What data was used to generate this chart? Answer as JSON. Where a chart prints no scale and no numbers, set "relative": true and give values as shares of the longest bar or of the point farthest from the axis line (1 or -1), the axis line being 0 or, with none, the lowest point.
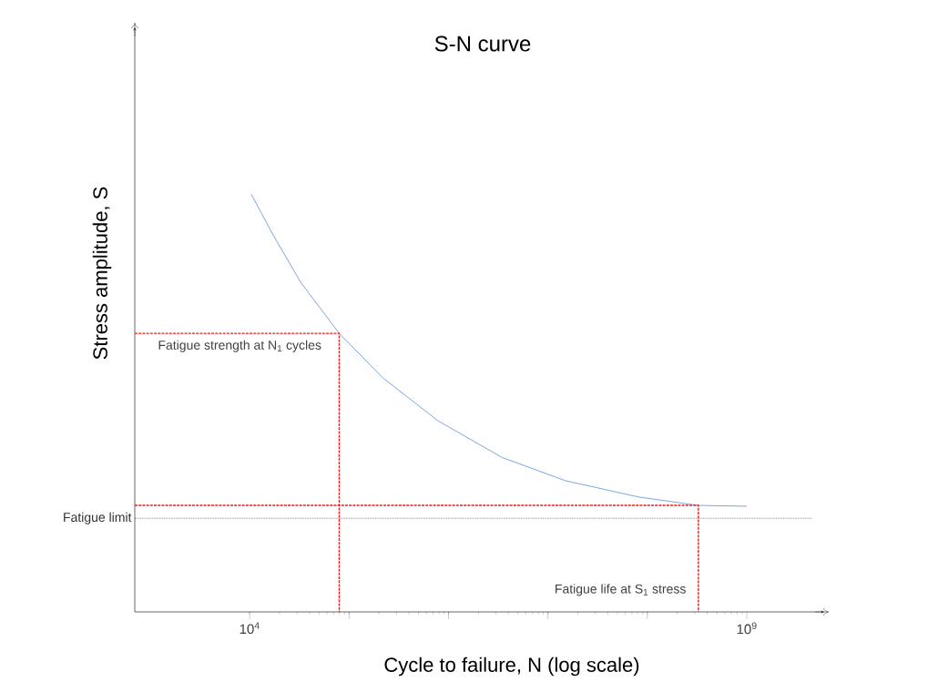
{
  "chart_data": {
    "type": "line",
    "title": "S-N curve",
    "xlabel": "Cycle to failure, N   (log scale)",
    "ylabel": "Stress amplitude, S",
    "relative": true,
    "log": "x",
    "marker": "none",
    "xlim": [
      700,
      6000000000
    ],
    "xticks": [
      {
        "value": 10000,
        "label": "10$^{4}$"
      },
      {
        "value": 100000,
        "label": null
      },
      {
        "value": 1000000,
        "label": null
      },
      {
        "value": 10000000,
        "label": null
      },
      {
        "value": 100000000,
        "label": null
      },
      {
        "value": 1000000000,
        "label": "10$^{9}$"
      }
    ],
    "series": [
      {
        "color": "#5b8fd6",
        "x": [
          10400,
          17300,
          32700,
          79600,
          220000,
          780000,
          3440000,
          15100000,
          82000000,
          326000000,
          1000000000
        ],
        "values": [
          1.0,
          0.902,
          0.789,
          0.667,
          0.56,
          0.458,
          0.37,
          0.314,
          0.275,
          0.255,
          0.253
        ]
      },
      {
        "type": "line",
        "color": "#e02020",
        "line_style": "dashed",
        "x": [
          700,
          79600,
          79600
        ],
        "values": [
          0.667,
          0.667,
          0
        ]
      },
      {
        "type": "line",
        "color": "#e02020",
        "line_style": "dashed",
        "x": [
          700,
          326000000,
          326000000
        ],
        "values": [
          0.255,
          0.255,
          0
        ]
      }
    ],
    "ref_lines": [
      {
        "axis": "y",
        "value": 0.224,
        "label": "Fatigue limit",
        "color": "#000000",
        "line_style": "dotted"
      }
    ],
    "annotations": [
      {
        "text": "Fatigue strength at N$_{1}$ cycles",
        "x": 79600,
        "y": 0.667
      },
      {
        "text": "Fatigue life at S$_{1}$ stress",
        "x": 326000000,
        "y": 0
      }
    ]
  }
}
